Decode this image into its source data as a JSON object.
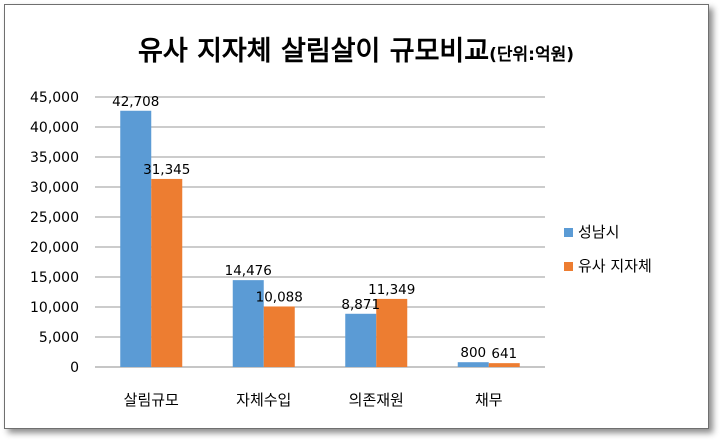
{
  "chart_data": {
    "type": "bar",
    "title": "유사 지자체 살림살이 규모비교",
    "subtitle": "(단위:억원)",
    "categories": [
      "살림규모",
      "자체수입",
      "의존재원",
      "채무"
    ],
    "series": [
      {
        "name": "성남시",
        "values": [
          42708,
          14476,
          8871,
          800
        ],
        "labels": [
          "42,708",
          "14,476",
          "8,871",
          "800"
        ],
        "color": "#5b9bd5"
      },
      {
        "name": "유사 지자체",
        "values": [
          31345,
          10088,
          11349,
          641
        ],
        "labels": [
          "31,345",
          "10,088",
          "11,349",
          "641"
        ],
        "color": "#ed7d31"
      }
    ],
    "ylim": [
      0,
      45000
    ],
    "yticks": [
      0,
      5000,
      10000,
      15000,
      20000,
      25000,
      30000,
      35000,
      40000,
      45000
    ],
    "ytick_labels": [
      "0",
      "5,000",
      "10,000",
      "15,000",
      "20,000",
      "25,000",
      "30,000",
      "35,000",
      "40,000",
      "45,000"
    ],
    "grid": true,
    "legend_position": "right",
    "xlabel": "",
    "ylabel": ""
  }
}
